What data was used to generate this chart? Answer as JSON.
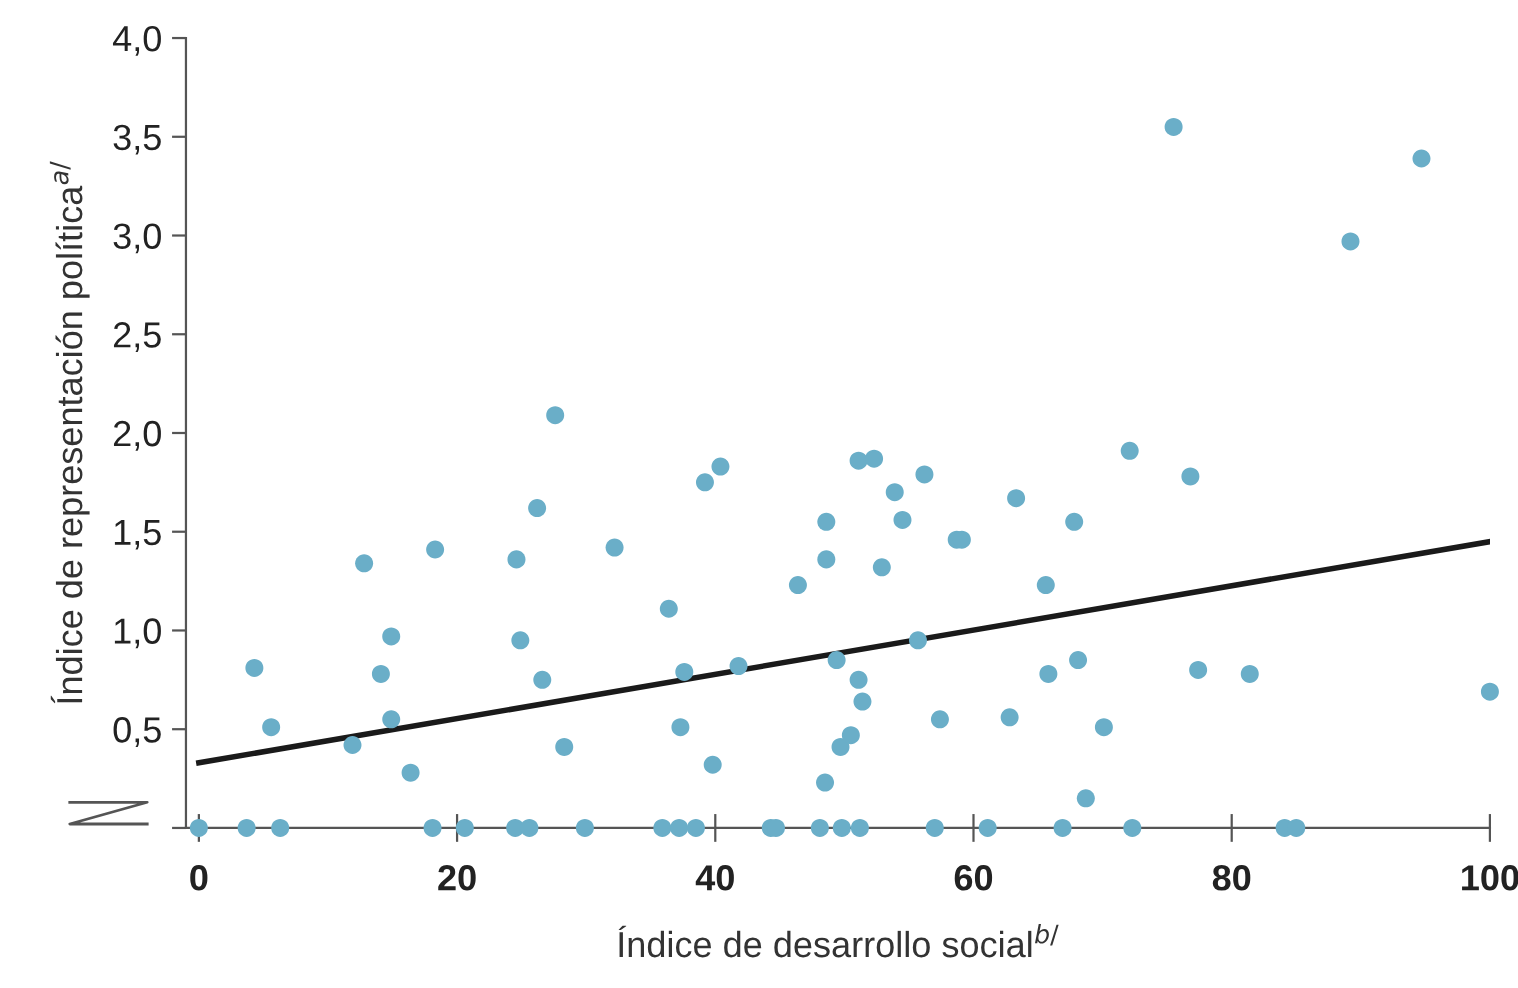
{
  "chart_data": {
    "type": "scatter",
    "xlabel": "Índice de desarrollo social$^{b/}$",
    "ylabel": "Índice de representación política$^{a/}$",
    "xlim": [
      -1,
      100
    ],
    "xticks": [
      0,
      20,
      40,
      60,
      80,
      100
    ],
    "ylim": [
      0,
      4
    ],
    "yticks": [
      {
        "value": 0,
        "label": null
      },
      {
        "value": 0.5,
        "label": "0,5"
      },
      {
        "value": 1.0,
        "label": "1,0"
      },
      {
        "value": 1.5,
        "label": "1,5"
      },
      {
        "value": 2.0,
        "label": "2,0"
      },
      {
        "value": 2.5,
        "label": "2,5"
      },
      {
        "value": 3.0,
        "label": "3,0"
      },
      {
        "value": 3.5,
        "label": "3,5"
      },
      {
        "value": 4.0,
        "label": "4,0"
      }
    ],
    "grid": false,
    "legend": false,
    "marker": "circle",
    "series": [
      {
        "color": "#6aaec8",
        "x": [
          0,
          4.3,
          5.6,
          3.7,
          6.3,
          11.9,
          12.8,
          14.1,
          14.9,
          14.9,
          16.4,
          18.3,
          18.1,
          20.6,
          24.6,
          24.9,
          24.5,
          25.6,
          26.2,
          26.6,
          27.6,
          28.3,
          29.9,
          32.2,
          35.9,
          36.4,
          37.2,
          37.3,
          37.6,
          38.5,
          39.2,
          39.8,
          40.4,
          41.8,
          44.3,
          44.7,
          46.4,
          48.1,
          48.5,
          48.6,
          48.6,
          49.4,
          49.7,
          49.8,
          50.5,
          51.1,
          51.2,
          51.1,
          51.4,
          52.3,
          52.9,
          53.9,
          54.5,
          55.7,
          56.2,
          57.0,
          57.4,
          58.7,
          59.1,
          61.1,
          62.8,
          63.3,
          65.6,
          65.8,
          66.9,
          67.8,
          68.1,
          68.7,
          70.1,
          72.1,
          72.3,
          75.5,
          76.8,
          77.4,
          81.4,
          84.1,
          85.0,
          89.2,
          94.7,
          100
        ],
        "values": [
          0,
          0.81,
          0.51,
          0,
          0,
          0.42,
          1.34,
          0.78,
          0.97,
          0.55,
          0.28,
          1.41,
          0,
          0,
          1.36,
          0.95,
          0,
          0,
          1.62,
          0.75,
          2.09,
          0.41,
          0,
          1.42,
          0,
          1.11,
          0,
          0.51,
          0.79,
          0,
          1.75,
          0.32,
          1.83,
          0.82,
          0,
          0,
          1.23,
          0,
          0.23,
          1.36,
          1.55,
          0.85,
          0.41,
          0,
          0.47,
          0.75,
          0,
          1.86,
          0.64,
          1.87,
          1.32,
          1.7,
          1.56,
          0.95,
          1.79,
          0,
          0.55,
          1.46,
          1.46,
          0,
          0.56,
          1.67,
          1.23,
          0.78,
          0,
          1.55,
          0.85,
          0.15,
          0.51,
          1.91,
          0,
          3.55,
          1.78,
          0.8,
          0.78,
          0,
          0,
          2.97,
          3.39,
          0.69
        ]
      },
      {
        "type": "line",
        "color": "#1a1a1a",
        "x": [
          0,
          100
        ],
        "values": [
          0.33,
          1.45
        ],
        "marker": "none",
        "line_style": "solid"
      }
    ]
  }
}
